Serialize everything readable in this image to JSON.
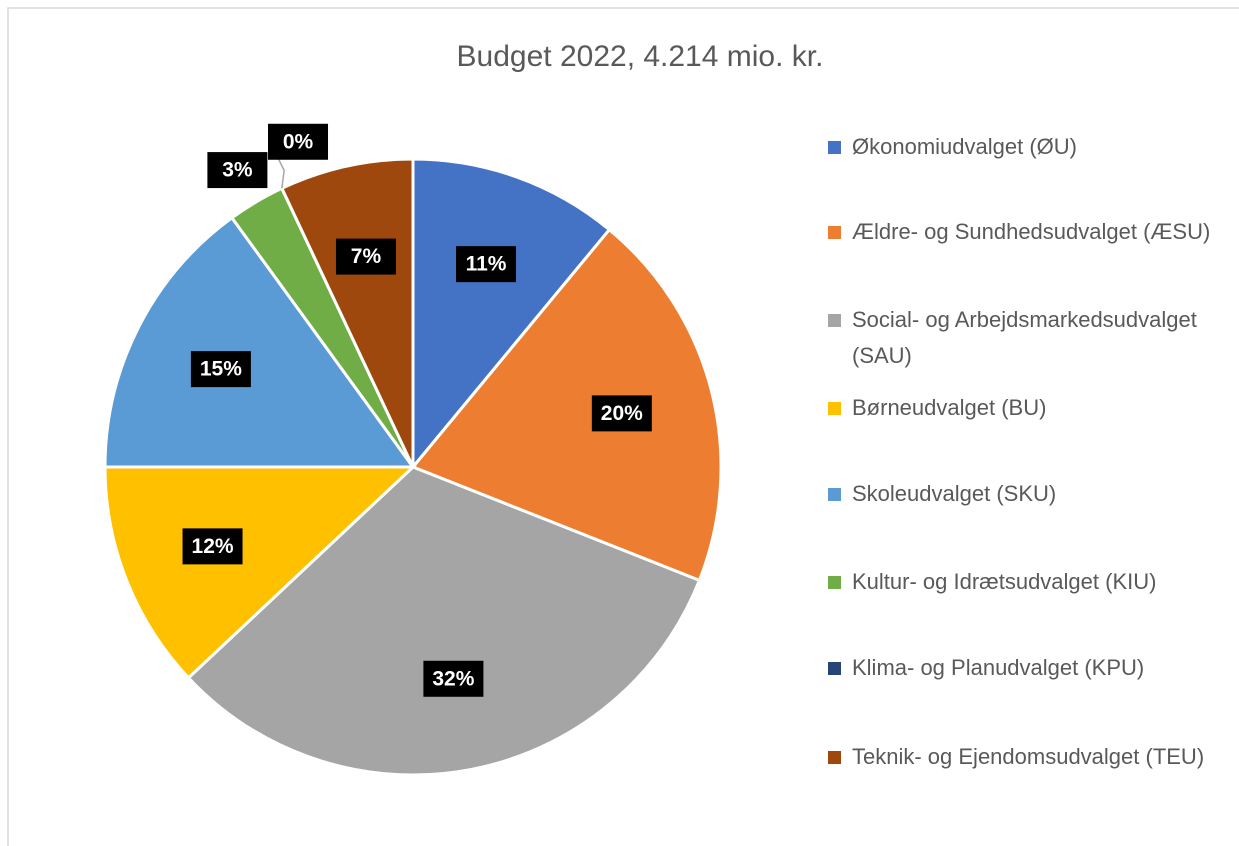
{
  "chart_data": {
    "type": "pie",
    "title": "Budget 2022, 4.214 mio. kr.",
    "categories": [
      "Økonomiudvalget (ØU)",
      "Ældre- og Sundhedsudvalget (ÆSU)",
      "Social- og Arbejdsmarkedsudvalget (SAU)",
      "Børneudvalget (BU)",
      "Skoleudvalget (SKU)",
      "Kultur- og Idrætsudvalget (KIU)",
      "Klima- og Planudvalget (KPU)",
      "Teknik- og Ejendomsudvalget (TEU)"
    ],
    "values": [
      11,
      20,
      32,
      12,
      15,
      3,
      0,
      7
    ],
    "value_labels": [
      "11%",
      "20%",
      "32%",
      "12%",
      "15%",
      "3%",
      "0%",
      "7%"
    ],
    "colors": [
      "#4472c4",
      "#ed7d31",
      "#a5a5a5",
      "#ffc000",
      "#5b9bd5",
      "#70ad47",
      "#264478",
      "#9e480e"
    ],
    "legend": "right"
  }
}
